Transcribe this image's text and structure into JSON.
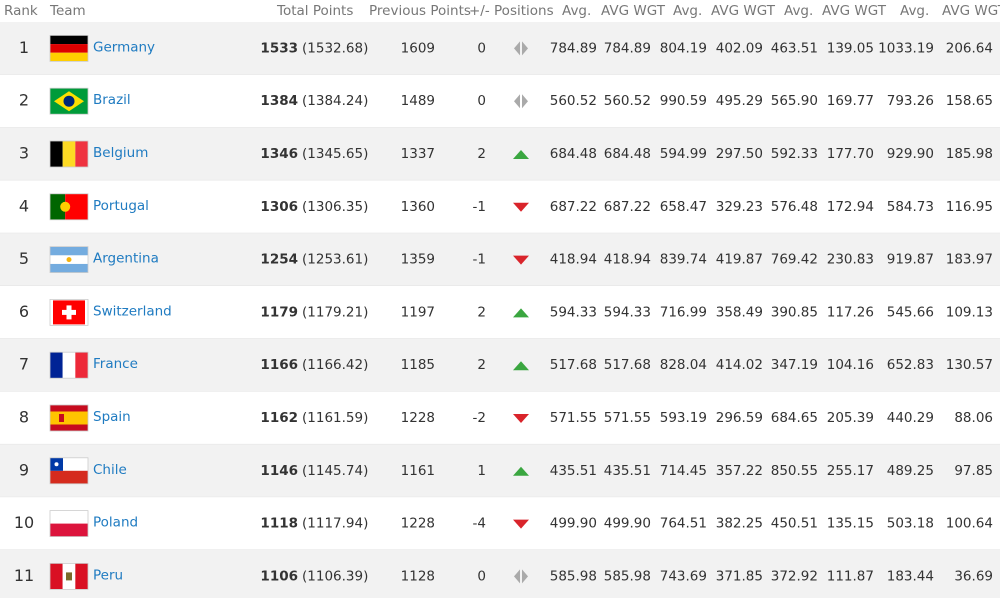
{
  "table": {
    "header": [
      "Rank",
      "Team",
      "Total Points",
      "Previous Points",
      "+/- Positions",
      "Avg.",
      "AVG WGT",
      "Avg.",
      "AVG WGT",
      "Avg.",
      "AVG WGT",
      "Avg.",
      "AVG WGT"
    ],
    "rows": [
      {
        "rank": 1,
        "team": "Germany",
        "total_points": 1533,
        "total_points_exact": "(1532.68)",
        "previous_points": 1609,
        "positions": 0,
        "values": [
          "784.89",
          "784.89",
          "804.19",
          "402.09",
          "463.51",
          "139.05",
          "1033.19",
          "206.64"
        ]
      },
      {
        "rank": 2,
        "team": "Brazil",
        "total_points": 1384,
        "total_points_exact": "(1384.24)",
        "previous_points": 1489,
        "positions": 0,
        "values": [
          "560.52",
          "560.52",
          "990.59",
          "495.29",
          "565.90",
          "169.77",
          "793.26",
          "158.65"
        ]
      },
      {
        "rank": 3,
        "team": "Belgium",
        "total_points": 1346,
        "total_points_exact": "(1345.65)",
        "previous_points": 1337,
        "positions": 2,
        "values": [
          "684.48",
          "684.48",
          "594.99",
          "297.50",
          "592.33",
          "177.70",
          "929.90",
          "185.98"
        ]
      },
      {
        "rank": 4,
        "team": "Portugal",
        "total_points": 1306,
        "total_points_exact": "(1306.35)",
        "previous_points": 1360,
        "positions": -1,
        "values": [
          "687.22",
          "687.22",
          "658.47",
          "329.23",
          "576.48",
          "172.94",
          "584.73",
          "116.95"
        ]
      },
      {
        "rank": 5,
        "team": "Argentina",
        "total_points": 1254,
        "total_points_exact": "(1253.61)",
        "previous_points": 1359,
        "positions": -1,
        "values": [
          "418.94",
          "418.94",
          "839.74",
          "419.87",
          "769.42",
          "230.83",
          "919.87",
          "183.97"
        ]
      },
      {
        "rank": 6,
        "team": "Switzerland",
        "total_points": 1179,
        "total_points_exact": "(1179.21)",
        "previous_points": 1197,
        "positions": 2,
        "values": [
          "594.33",
          "594.33",
          "716.99",
          "358.49",
          "390.85",
          "117.26",
          "545.66",
          "109.13"
        ]
      },
      {
        "rank": 7,
        "team": "France",
        "total_points": 1166,
        "total_points_exact": "(1166.42)",
        "previous_points": 1185,
        "positions": 2,
        "values": [
          "517.68",
          "517.68",
          "828.04",
          "414.02",
          "347.19",
          "104.16",
          "652.83",
          "130.57"
        ]
      },
      {
        "rank": 8,
        "team": "Spain",
        "total_points": 1162,
        "total_points_exact": "(1161.59)",
        "previous_points": 1228,
        "positions": -2,
        "values": [
          "571.55",
          "571.55",
          "593.19",
          "296.59",
          "684.65",
          "205.39",
          "440.29",
          "88.06"
        ]
      },
      {
        "rank": 9,
        "team": "Chile",
        "total_points": 1146,
        "total_points_exact": "(1145.74)",
        "previous_points": 1161,
        "positions": 1,
        "values": [
          "435.51",
          "435.51",
          "714.45",
          "357.22",
          "850.55",
          "255.17",
          "489.25",
          "97.85"
        ]
      },
      {
        "rank": 10,
        "team": "Poland",
        "total_points": 1118,
        "total_points_exact": "(1117.94)",
        "previous_points": 1228,
        "positions": -4,
        "values": [
          "499.90",
          "499.90",
          "764.51",
          "382.25",
          "450.51",
          "135.15",
          "503.18",
          "100.64"
        ]
      },
      {
        "rank": 11,
        "team": "Peru",
        "total_points": 1106,
        "total_points_exact": "(1106.39)",
        "previous_points": 1128,
        "positions": 0,
        "values": [
          "585.98",
          "585.98",
          "743.69",
          "371.85",
          "372.92",
          "111.87",
          "183.44",
          "36.69"
        ]
      }
    ]
  }
}
